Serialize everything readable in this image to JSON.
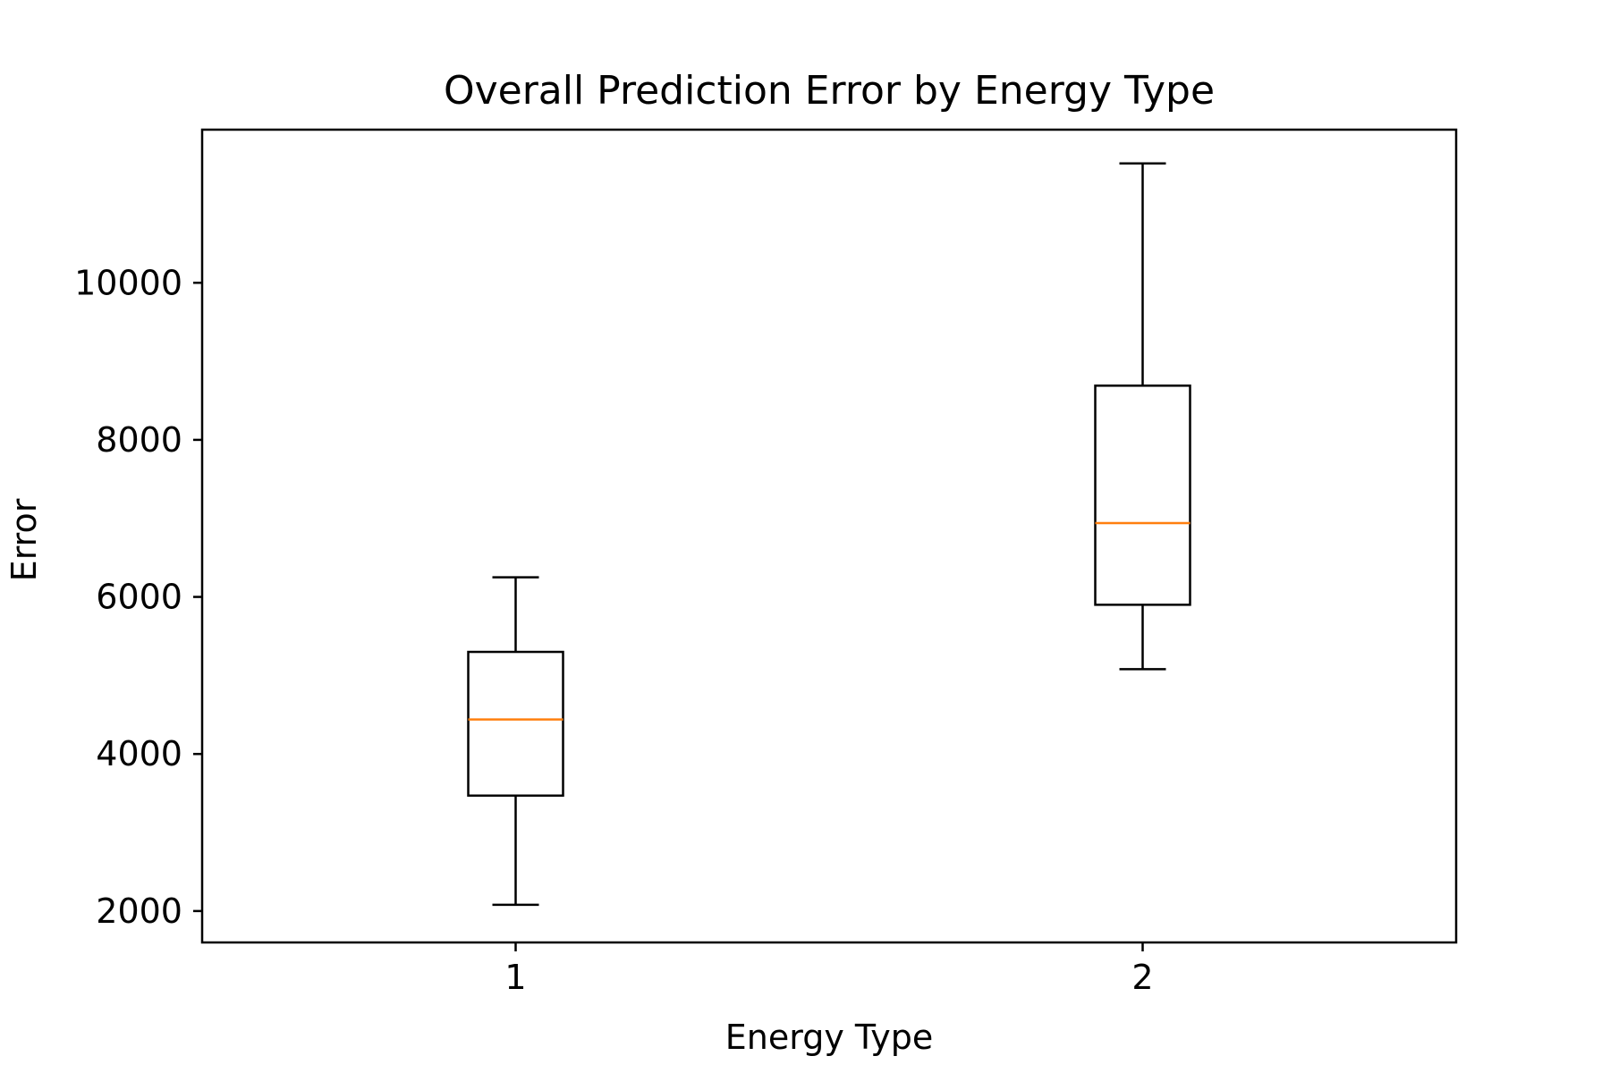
{
  "chart_data": {
    "type": "box",
    "title": "Overall Prediction Error by Energy Type",
    "xlabel": "Energy Type",
    "ylabel": "Error",
    "categories": [
      "1",
      "2"
    ],
    "x_ticks": [
      "1",
      "2"
    ],
    "y_ticks": [
      2000,
      4000,
      6000,
      8000,
      10000
    ],
    "ylim": [
      1600,
      11950
    ],
    "grid": false,
    "legend": "none",
    "boxes": [
      {
        "category": "1",
        "whisker_low": 2080,
        "q1": 3470,
        "median": 4440,
        "q3": 5300,
        "whisker_high": 6250
      },
      {
        "category": "2",
        "whisker_low": 5080,
        "q1": 5900,
        "median": 6940,
        "q3": 8690,
        "whisker_high": 11520
      }
    ],
    "colors": {
      "box": "#000000",
      "median": "#ff7f0e",
      "axes": "#000000"
    }
  }
}
